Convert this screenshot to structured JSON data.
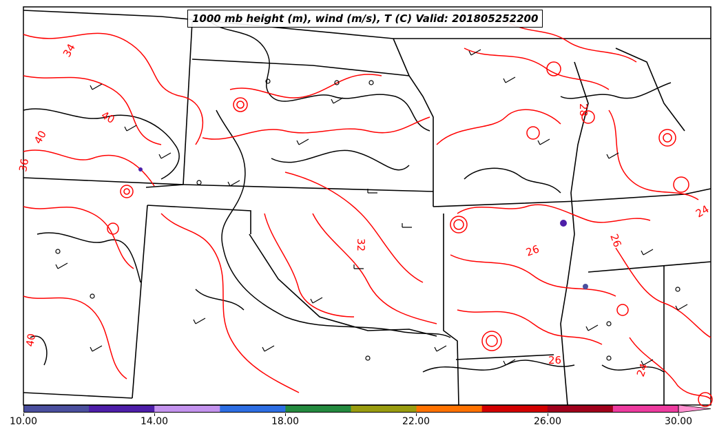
{
  "title": "1000 mb height (m), wind (m/s), T (C) Valid: 201805252200",
  "contour_colors": {
    "temperature": "#ff0000",
    "height": "#000000",
    "state_borders": "#000000"
  },
  "temperature_contour_labels": [
    "34",
    "40",
    "40",
    "36",
    "32",
    "28",
    "26",
    "26",
    "24",
    "26",
    "24",
    "40"
  ],
  "colorbar": {
    "min": 10,
    "max": 30,
    "extend": "max",
    "colors": [
      "#4a4f9e",
      "#4d1ea8",
      "#c493ee",
      "#2d6ee3",
      "#248a3f",
      "#999c10",
      "#ff7200",
      "#d20000",
      "#a0001c",
      "#ed3c9f",
      "#ff91d0"
    ],
    "tick_labels": [
      "10.00",
      "14.00",
      "18.00",
      "22.00",
      "26.00",
      "30.00"
    ]
  }
}
